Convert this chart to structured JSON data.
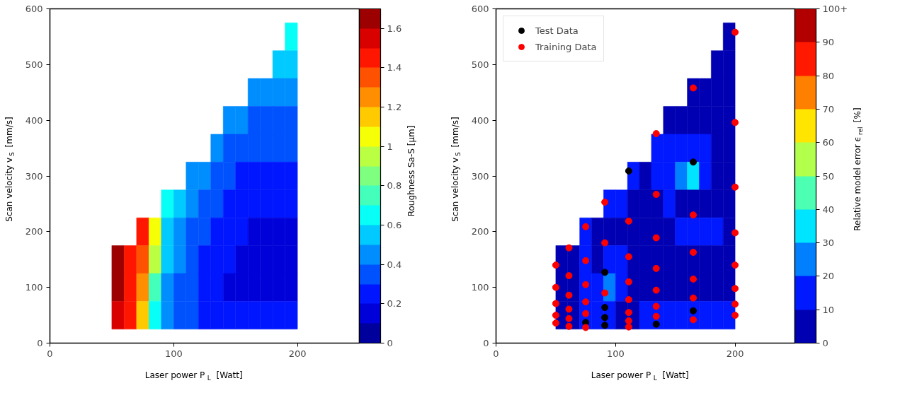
{
  "chart_data": [
    {
      "type": "heatmap",
      "xlabel": "Laser power P$_{L}$ [Watt]",
      "ylabel": "Scan velocity v$_{S}$ [mm/s]",
      "clabel": "Roughness Sa-S [µm]",
      "x": [
        55,
        65,
        75,
        85,
        95,
        105,
        115,
        125,
        135,
        145,
        155,
        165,
        175,
        185,
        195
      ],
      "y": [
        550,
        500,
        450,
        400,
        350,
        300,
        250,
        200,
        150,
        100,
        50
      ],
      "cells": [
        [
          null,
          null,
          null,
          null,
          null,
          null,
          null,
          null,
          null,
          null,
          null,
          null,
          null,
          null,
          0.65
        ],
        [
          null,
          null,
          null,
          null,
          null,
          null,
          null,
          null,
          null,
          null,
          null,
          null,
          null,
          0.55,
          0.55
        ],
        [
          null,
          null,
          null,
          null,
          null,
          null,
          null,
          null,
          null,
          null,
          null,
          0.45,
          0.45,
          0.45,
          0.45
        ],
        [
          null,
          null,
          null,
          null,
          null,
          null,
          null,
          null,
          null,
          0.45,
          0.4,
          0.35,
          0.35,
          0.35,
          0.35
        ],
        [
          null,
          null,
          null,
          null,
          null,
          null,
          null,
          null,
          0.4,
          0.35,
          0.3,
          0.3,
          0.3,
          0.3,
          0.3
        ],
        [
          null,
          null,
          null,
          null,
          null,
          null,
          0.45,
          0.4,
          0.35,
          0.3,
          0.25,
          0.25,
          0.25,
          0.25,
          0.25
        ],
        [
          null,
          null,
          null,
          null,
          0.6,
          0.5,
          0.4,
          0.35,
          0.3,
          0.25,
          0.25,
          0.25,
          0.25,
          0.25,
          0.25
        ],
        [
          null,
          null,
          1.4,
          1.0,
          0.55,
          0.45,
          0.35,
          0.3,
          0.25,
          0.25,
          0.25,
          0.15,
          0.15,
          0.15,
          0.15
        ],
        [
          1.6,
          1.45,
          1.35,
          0.9,
          0.5,
          0.4,
          0.3,
          0.25,
          0.25,
          0.2,
          0.15,
          0.15,
          0.15,
          0.15,
          0.15
        ],
        [
          1.65,
          1.45,
          1.2,
          0.75,
          0.45,
          0.35,
          0.3,
          0.25,
          0.2,
          0.15,
          0.15,
          0.15,
          0.15,
          0.15,
          0.15
        ],
        [
          1.55,
          1.45,
          1.1,
          0.6,
          0.4,
          0.3,
          0.3,
          0.25,
          0.25,
          0.25,
          0.25,
          0.2,
          0.2,
          0.2,
          0.2
        ]
      ],
      "clim": [
        0,
        1.7
      ],
      "cticks": [
        0,
        0.2,
        0.4,
        0.6,
        0.8,
        1.0,
        {
          "value": 1.2,
          "label": "1.2"
        },
        1.4,
        1.6
      ],
      "xlim": [
        0,
        250
      ],
      "xticks": [
        0,
        100,
        200
      ],
      "ylim": [
        0,
        600
      ],
      "yticks": [
        0,
        100,
        200,
        300,
        400,
        500,
        600
      ],
      "grid": false
    },
    {
      "type": "heatmap",
      "xlabel": "Laser power P$_{L}$ [Watt]",
      "ylabel": "Scan velocity v$_{S}$ [mm/s]",
      "clabel": "Relative model error ϵ$_{rel}$ [%]",
      "x": [
        55,
        65,
        75,
        85,
        95,
        105,
        115,
        125,
        135,
        145,
        155,
        165,
        175,
        185,
        195
      ],
      "y": [
        550,
        500,
        450,
        400,
        350,
        300,
        250,
        200,
        150,
        100,
        50
      ],
      "cells": [
        [
          null,
          null,
          null,
          null,
          null,
          null,
          null,
          null,
          null,
          null,
          null,
          null,
          null,
          null,
          5
        ],
        [
          null,
          null,
          null,
          null,
          null,
          null,
          null,
          null,
          null,
          null,
          null,
          null,
          null,
          5,
          5
        ],
        [
          null,
          null,
          null,
          null,
          null,
          null,
          null,
          null,
          null,
          null,
          null,
          5,
          5,
          5,
          5
        ],
        [
          null,
          null,
          null,
          null,
          null,
          null,
          null,
          null,
          null,
          5,
          5,
          5,
          5,
          5,
          5
        ],
        [
          null,
          null,
          null,
          null,
          null,
          null,
          null,
          null,
          15,
          15,
          15,
          15,
          15,
          5,
          5
        ],
        [
          null,
          null,
          null,
          null,
          null,
          null,
          15,
          5,
          15,
          15,
          25,
          35,
          15,
          5,
          5
        ],
        [
          null,
          null,
          null,
          null,
          15,
          15,
          5,
          5,
          5,
          15,
          5,
          5,
          5,
          5,
          5
        ],
        [
          null,
          null,
          15,
          5,
          5,
          5,
          5,
          5,
          5,
          5,
          15,
          15,
          15,
          15,
          5
        ],
        [
          5,
          5,
          15,
          5,
          15,
          15,
          5,
          5,
          5,
          5,
          5,
          5,
          5,
          5,
          5
        ],
        [
          5,
          5,
          15,
          15,
          25,
          15,
          5,
          5,
          5,
          5,
          5,
          5,
          5,
          5,
          5
        ],
        [
          5,
          5,
          15,
          15,
          15,
          5,
          5,
          15,
          15,
          15,
          15,
          15,
          15,
          15,
          15
        ]
      ],
      "clim": [
        0,
        100
      ],
      "cticks": [
        0,
        10,
        20,
        30,
        40,
        50,
        60,
        70,
        80,
        90,
        {
          "value": 100,
          "label": "100+"
        }
      ],
      "xlim": [
        0,
        250
      ],
      "xticks": [
        0,
        100,
        200
      ],
      "ylim": [
        0,
        600
      ],
      "yticks": [
        0,
        100,
        200,
        300,
        400,
        500,
        600
      ],
      "grid": false,
      "legend": "top left",
      "series": [
        {
          "type": "scatter",
          "name": "Test Data",
          "color": "#000000",
          "x": [
            111,
            165,
            91,
            91,
            91,
            91,
            75,
            134,
            165
          ],
          "values": [
            309,
            325,
            127,
            64,
            46,
            32,
            37,
            34,
            58
          ]
        },
        {
          "type": "scatter",
          "name": "Training Data",
          "color": "#ff0000",
          "x": [
            50,
            50,
            50,
            50,
            50,
            61,
            61,
            61,
            61,
            61,
            61,
            75,
            75,
            75,
            75,
            75,
            75,
            91,
            91,
            91,
            111,
            111,
            111,
            111,
            111,
            111,
            111,
            134,
            134,
            134,
            134,
            134,
            134,
            134,
            165,
            165,
            165,
            165,
            165,
            200,
            200,
            200,
            200,
            200,
            200,
            200,
            200,
            165
          ],
          "values": [
            140,
            100,
            71,
            50,
            36,
            171,
            121,
            86,
            61,
            44,
            30,
            209,
            148,
            105,
            74,
            53,
            28,
            253,
            180,
            90,
            219,
            155,
            110,
            78,
            55,
            40,
            29,
            376,
            267,
            189,
            134,
            95,
            66,
            48,
            230,
            163,
            115,
            81,
            42,
            396,
            280,
            198,
            140,
            98,
            70,
            50,
            558,
            458
          ]
        }
      ]
    }
  ]
}
